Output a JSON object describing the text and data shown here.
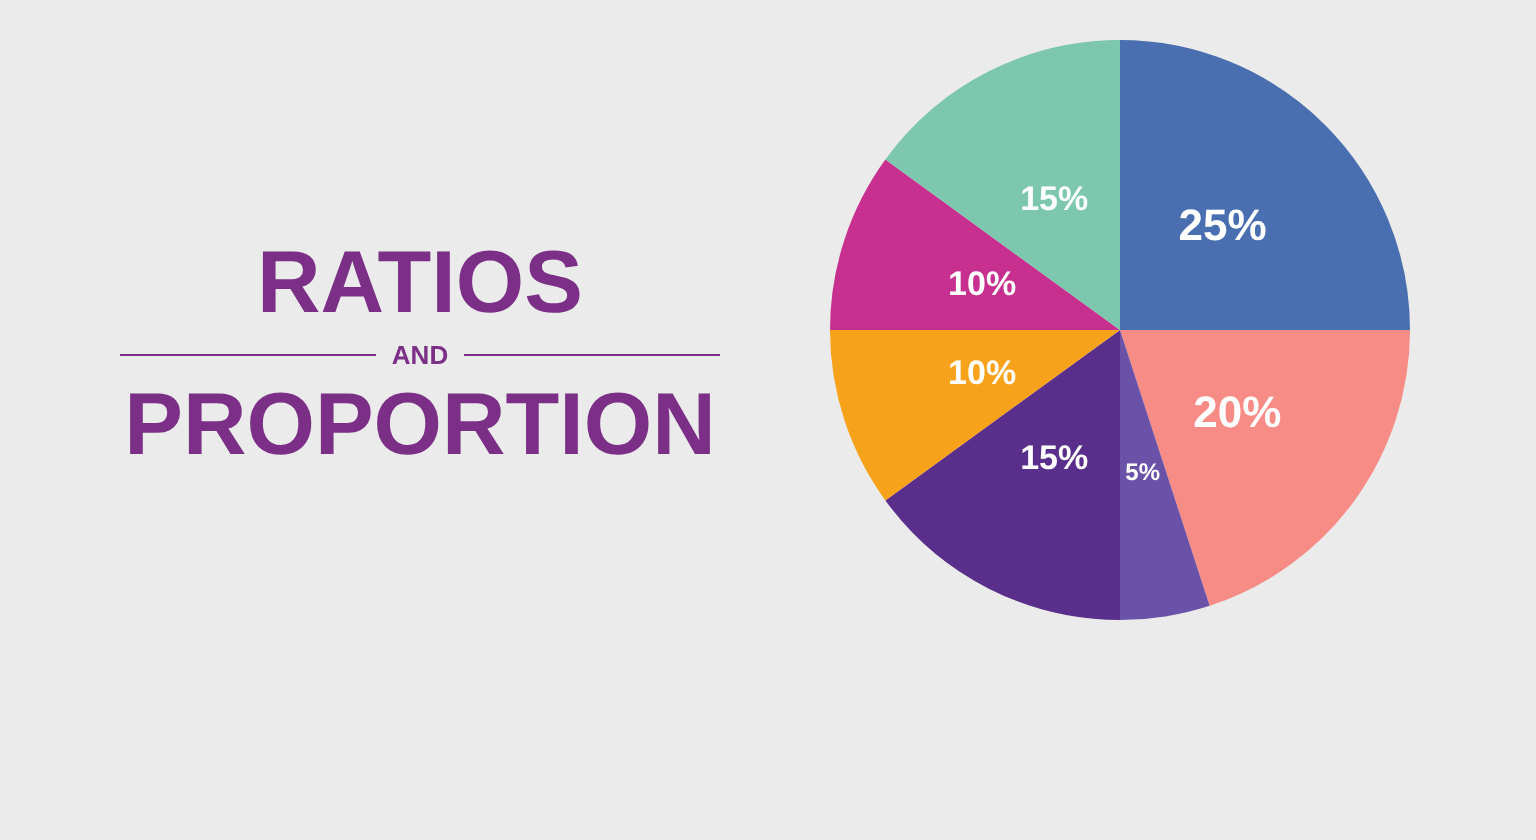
{
  "chart_data": {
    "type": "pie",
    "title": "RATIOS AND PROPORTION",
    "categories": [
      null,
      null,
      null,
      null,
      null,
      null,
      null
    ],
    "values": [
      25,
      20,
      5,
      15,
      10,
      10,
      15
    ],
    "colors": [
      "#4a6fb0",
      "#f78b86",
      "#6a52a8",
      "#5a2f8c",
      "#f7a21b",
      "#c8308f",
      "#7cc7ae"
    ],
    "value_labels": [
      "25%",
      "20%",
      "5%",
      "15%",
      "10%",
      "10%",
      "15%"
    ],
    "legend": false
  }
}
